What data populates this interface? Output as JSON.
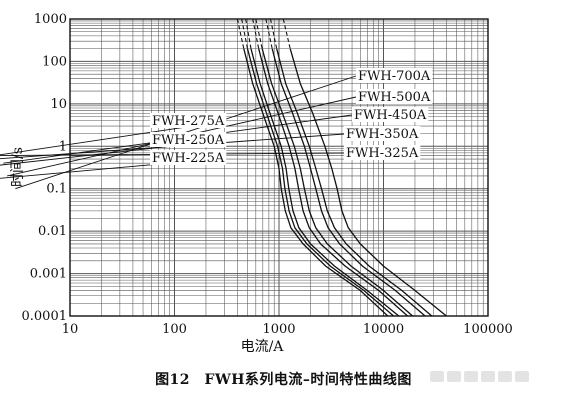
{
  "caption": "图12　FWH系列电流–时间特性曲线图",
  "chart_data": {
    "type": "line",
    "title": "",
    "xlabel": "电流/A",
    "ylabel": "时间/s",
    "x_scale": "log",
    "y_scale": "log",
    "xlim": [
      10,
      100000
    ],
    "ylim": [
      0.0001,
      1000
    ],
    "grid": true,
    "x_ticks": [
      {
        "value": 10,
        "label": "10"
      },
      {
        "value": 100,
        "label": "100"
      },
      {
        "value": 1000,
        "label": "1000"
      },
      {
        "value": 10000,
        "label": "10000"
      },
      {
        "value": 100000,
        "label": "100000"
      }
    ],
    "y_ticks": [
      {
        "value": 0.0001,
        "label": "0.0001"
      },
      {
        "value": 0.001,
        "label": "0.001"
      },
      {
        "value": 0.01,
        "label": "0.01"
      },
      {
        "value": 0.1,
        "label": "0.1"
      },
      {
        "value": 1,
        "label": "1"
      },
      {
        "value": 10,
        "label": "10"
      },
      {
        "value": 100,
        "label": "100"
      },
      {
        "value": 1000,
        "label": "1000"
      }
    ],
    "series": [
      {
        "name": "FWH-225A",
        "dashed": [
          [
            400,
            1000
          ],
          [
            460,
            200
          ]
        ],
        "points": [
          [
            460,
            200
          ],
          [
            560,
            30
          ],
          [
            700,
            6
          ],
          [
            900,
            1
          ],
          [
            1000,
            0.3
          ],
          [
            1050,
            0.1
          ],
          [
            1150,
            0.03
          ],
          [
            1300,
            0.012
          ],
          [
            1700,
            0.005
          ],
          [
            2800,
            0.0015
          ],
          [
            6000,
            0.0004
          ],
          [
            11000,
            0.0001
          ]
        ]
      },
      {
        "name": "FWH-250A",
        "dashed": [
          [
            440,
            1000
          ],
          [
            500,
            200
          ]
        ],
        "points": [
          [
            500,
            200
          ],
          [
            610,
            30
          ],
          [
            760,
            6
          ],
          [
            970,
            1
          ],
          [
            1080,
            0.3
          ],
          [
            1140,
            0.1
          ],
          [
            1250,
            0.03
          ],
          [
            1420,
            0.012
          ],
          [
            1850,
            0.005
          ],
          [
            3100,
            0.0015
          ],
          [
            6500,
            0.0004
          ],
          [
            12500,
            0.0001
          ]
        ]
      },
      {
        "name": "FWH-275A",
        "dashed": [
          [
            480,
            1000
          ],
          [
            540,
            200
          ]
        ],
        "points": [
          [
            540,
            200
          ],
          [
            660,
            30
          ],
          [
            820,
            6
          ],
          [
            1050,
            1
          ],
          [
            1170,
            0.3
          ],
          [
            1240,
            0.1
          ],
          [
            1360,
            0.03
          ],
          [
            1550,
            0.012
          ],
          [
            2000,
            0.005
          ],
          [
            3400,
            0.0015
          ],
          [
            7000,
            0.0004
          ],
          [
            14000,
            0.0001
          ]
        ]
      },
      {
        "name": "FWH-325A",
        "dashed": [
          [
            560,
            1000
          ],
          [
            640,
            200
          ]
        ],
        "points": [
          [
            640,
            200
          ],
          [
            780,
            30
          ],
          [
            980,
            6
          ],
          [
            1250,
            1
          ],
          [
            1420,
            0.3
          ],
          [
            1540,
            0.1
          ],
          [
            1700,
            0.03
          ],
          [
            1950,
            0.012
          ],
          [
            2500,
            0.005
          ],
          [
            4300,
            0.0015
          ],
          [
            9000,
            0.0004
          ],
          [
            17000,
            0.0001
          ]
        ]
      },
      {
        "name": "FWH-350A",
        "dashed": [
          [
            600,
            1000
          ],
          [
            690,
            200
          ]
        ],
        "points": [
          [
            690,
            200
          ],
          [
            850,
            30
          ],
          [
            1080,
            6
          ],
          [
            1400,
            1
          ],
          [
            1600,
            0.3
          ],
          [
            1750,
            0.1
          ],
          [
            1950,
            0.03
          ],
          [
            2250,
            0.012
          ],
          [
            2900,
            0.005
          ],
          [
            4900,
            0.0015
          ],
          [
            10000,
            0.0004
          ],
          [
            19000,
            0.0001
          ]
        ]
      },
      {
        "name": "FWH-450A",
        "dashed": [
          [
            750,
            1000
          ],
          [
            860,
            200
          ]
        ],
        "points": [
          [
            860,
            200
          ],
          [
            1050,
            30
          ],
          [
            1350,
            6
          ],
          [
            1750,
            1
          ],
          [
            2000,
            0.3
          ],
          [
            2250,
            0.1
          ],
          [
            2550,
            0.03
          ],
          [
            2950,
            0.012
          ],
          [
            3800,
            0.005
          ],
          [
            6300,
            0.0015
          ],
          [
            13000,
            0.0004
          ],
          [
            25000,
            0.0001
          ]
        ]
      },
      {
        "name": "FWH-500A",
        "dashed": [
          [
            830,
            1000
          ],
          [
            950,
            200
          ]
        ],
        "points": [
          [
            950,
            200
          ],
          [
            1160,
            30
          ],
          [
            1500,
            6
          ],
          [
            1950,
            1
          ],
          [
            2250,
            0.3
          ],
          [
            2550,
            0.1
          ],
          [
            2900,
            0.03
          ],
          [
            3400,
            0.012
          ],
          [
            4400,
            0.005
          ],
          [
            7300,
            0.0015
          ],
          [
            15000,
            0.0004
          ],
          [
            29000,
            0.0001
          ]
        ]
      },
      {
        "name": "FWH-700A",
        "dashed": [
          [
            1100,
            1000
          ],
          [
            1280,
            200
          ]
        ],
        "points": [
          [
            1280,
            200
          ],
          [
            1600,
            30
          ],
          [
            2100,
            6
          ],
          [
            2750,
            1
          ],
          [
            3200,
            0.3
          ],
          [
            3600,
            0.1
          ],
          [
            4000,
            0.03
          ],
          [
            4600,
            0.012
          ],
          [
            6000,
            0.005
          ],
          [
            10000,
            0.0015
          ],
          [
            20000,
            0.0004
          ],
          [
            40000,
            0.0001
          ]
        ]
      }
    ]
  }
}
